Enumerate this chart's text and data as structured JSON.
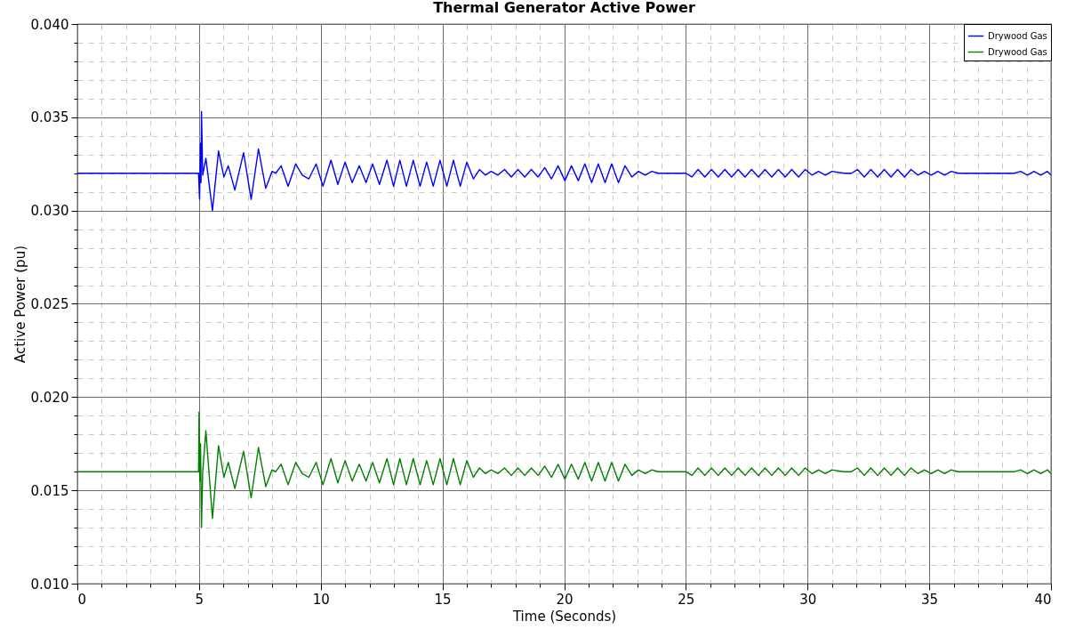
{
  "chart_data": {
    "type": "line",
    "title": "Thermal Generator Active Power",
    "xlabel": "Time (Seconds)",
    "ylabel": "Active Power (pu)",
    "xlim": [
      0,
      40
    ],
    "xticks": [
      0,
      5,
      10,
      15,
      20,
      25,
      30,
      35,
      40
    ],
    "ylim": [
      0.01,
      0.04
    ],
    "yticks": [
      {
        "value": 0.01,
        "label": "0.010"
      },
      {
        "value": 0.015,
        "label": "0.015"
      },
      {
        "value": 0.02,
        "label": "0.020"
      },
      {
        "value": 0.025,
        "label": "0.025"
      },
      {
        "value": 0.03,
        "label": "0.030"
      },
      {
        "value": 0.035,
        "label": "0.035"
      },
      {
        "value": 0.04,
        "label": "0.040"
      }
    ],
    "grid": true,
    "legend": "top right",
    "line_style": "solid",
    "marker": "none",
    "series": [
      {
        "name": "Drywood Gas",
        "color": "#0000ff",
        "x": [
          0,
          4.98,
          5.02,
          5.06,
          5.08,
          5.1,
          5.15,
          5.28,
          5.55,
          5.8,
          6.02,
          6.2,
          6.47,
          6.83,
          7.14,
          7.44,
          7.74,
          8.0,
          8.15,
          8.37,
          8.66,
          8.97,
          9.24,
          9.51,
          9.81,
          10.09,
          10.42,
          10.7,
          11.0,
          11.29,
          11.58,
          11.86,
          12.13,
          12.41,
          12.72,
          12.99,
          13.25,
          13.52,
          13.8,
          14.08,
          14.35,
          14.62,
          14.9,
          15.18,
          15.45,
          15.73,
          16.0,
          16.27,
          16.52,
          16.76,
          17.0,
          17.28,
          17.55,
          17.83,
          18.1,
          18.38,
          18.65,
          18.93,
          19.2,
          19.48,
          19.75,
          20.03,
          20.3,
          20.58,
          20.85,
          21.13,
          21.4,
          21.68,
          21.95,
          22.23,
          22.5,
          22.78,
          23.05,
          23.33,
          23.6,
          23.88,
          24.15,
          24.7,
          25.0,
          25.25,
          25.5,
          25.78,
          26.05,
          26.33,
          26.6,
          26.88,
          27.15,
          27.43,
          27.7,
          27.98,
          28.25,
          28.53,
          28.8,
          29.08,
          29.35,
          29.63,
          29.9,
          30.18,
          30.45,
          30.73,
          31.0,
          31.5,
          31.8,
          32.05,
          32.33,
          32.6,
          32.88,
          33.15,
          33.43,
          33.7,
          33.98,
          34.25,
          34.53,
          34.8,
          35.08,
          35.35,
          35.63,
          35.9,
          36.2,
          37.0,
          37.5,
          38.0,
          38.5,
          38.75,
          39.03,
          39.3,
          39.58,
          39.85,
          40
        ],
        "values": [
          0.032,
          0.032,
          0.0306,
          0.0336,
          0.0315,
          0.0353,
          0.0319,
          0.0328,
          0.03,
          0.0332,
          0.0318,
          0.0324,
          0.0311,
          0.0331,
          0.0306,
          0.0333,
          0.0312,
          0.0321,
          0.032,
          0.0324,
          0.0313,
          0.0325,
          0.0319,
          0.0317,
          0.0325,
          0.0313,
          0.0327,
          0.0314,
          0.0326,
          0.0315,
          0.0324,
          0.0315,
          0.0325,
          0.0314,
          0.0327,
          0.0313,
          0.0327,
          0.0313,
          0.0327,
          0.0313,
          0.0326,
          0.0313,
          0.0327,
          0.0313,
          0.0327,
          0.0313,
          0.0326,
          0.0317,
          0.0322,
          0.0319,
          0.0321,
          0.0319,
          0.0322,
          0.0318,
          0.0322,
          0.0318,
          0.0322,
          0.0318,
          0.0323,
          0.0317,
          0.0324,
          0.0316,
          0.0324,
          0.0316,
          0.0325,
          0.0315,
          0.0325,
          0.0315,
          0.0325,
          0.0315,
          0.0324,
          0.0318,
          0.0321,
          0.0319,
          0.0321,
          0.032,
          0.032,
          0.032,
          0.032,
          0.0318,
          0.0322,
          0.0318,
          0.0322,
          0.0318,
          0.0322,
          0.0318,
          0.0322,
          0.0318,
          0.0322,
          0.0318,
          0.0322,
          0.0318,
          0.0322,
          0.0318,
          0.0322,
          0.0318,
          0.0322,
          0.0319,
          0.0321,
          0.0319,
          0.0321,
          0.032,
          0.032,
          0.0322,
          0.0318,
          0.0322,
          0.0318,
          0.0322,
          0.0318,
          0.0322,
          0.0318,
          0.0322,
          0.0319,
          0.0321,
          0.0319,
          0.0321,
          0.0319,
          0.0321,
          0.032,
          0.032,
          0.032,
          0.032,
          0.032,
          0.0321,
          0.0319,
          0.0321,
          0.0319,
          0.0321,
          0.0319
        ]
      },
      {
        "name": "Drywood Gas",
        "color": "#008000",
        "x": [
          0,
          4.98,
          5.0,
          5.03,
          5.06,
          5.1,
          5.15,
          5.28,
          5.55,
          5.8,
          6.02,
          6.2,
          6.47,
          6.83,
          7.14,
          7.44,
          7.74,
          8.0,
          8.15,
          8.37,
          8.66,
          8.97,
          9.24,
          9.51,
          9.81,
          10.09,
          10.42,
          10.7,
          11.0,
          11.29,
          11.58,
          11.86,
          12.13,
          12.41,
          12.72,
          12.99,
          13.25,
          13.52,
          13.8,
          14.08,
          14.35,
          14.62,
          14.9,
          15.18,
          15.45,
          15.73,
          16.0,
          16.27,
          16.52,
          16.76,
          17.0,
          17.28,
          17.55,
          17.83,
          18.1,
          18.38,
          18.65,
          18.93,
          19.2,
          19.48,
          19.75,
          20.03,
          20.3,
          20.58,
          20.85,
          21.13,
          21.4,
          21.68,
          21.95,
          22.23,
          22.5,
          22.78,
          23.05,
          23.33,
          23.6,
          23.88,
          24.15,
          24.7,
          25.0,
          25.25,
          25.5,
          25.78,
          26.05,
          26.33,
          26.6,
          26.88,
          27.15,
          27.43,
          27.7,
          27.98,
          28.25,
          28.53,
          28.8,
          29.08,
          29.35,
          29.63,
          29.9,
          30.18,
          30.45,
          30.73,
          31.0,
          31.5,
          31.8,
          32.05,
          32.33,
          32.6,
          32.88,
          33.15,
          33.43,
          33.7,
          33.98,
          34.25,
          34.53,
          34.8,
          35.08,
          35.35,
          35.63,
          35.9,
          36.2,
          37.0,
          37.5,
          38.0,
          38.5,
          38.75,
          39.03,
          39.3,
          39.58,
          39.85,
          40
        ],
        "values": [
          0.016,
          0.016,
          0.0192,
          0.0155,
          0.0175,
          0.013,
          0.016,
          0.0182,
          0.0135,
          0.0174,
          0.0157,
          0.0165,
          0.0151,
          0.0171,
          0.0146,
          0.0173,
          0.0152,
          0.0161,
          0.016,
          0.0164,
          0.0153,
          0.0165,
          0.0159,
          0.0157,
          0.0165,
          0.0153,
          0.0167,
          0.0154,
          0.0166,
          0.0155,
          0.0164,
          0.0155,
          0.0165,
          0.0154,
          0.0167,
          0.0153,
          0.0167,
          0.0153,
          0.0167,
          0.0153,
          0.0166,
          0.0153,
          0.0167,
          0.0153,
          0.0167,
          0.0153,
          0.0166,
          0.0157,
          0.0162,
          0.0159,
          0.0161,
          0.0159,
          0.0162,
          0.0158,
          0.0162,
          0.0158,
          0.0162,
          0.0158,
          0.0163,
          0.0157,
          0.0164,
          0.0156,
          0.0164,
          0.0156,
          0.0165,
          0.0155,
          0.0165,
          0.0155,
          0.0165,
          0.0155,
          0.0164,
          0.0158,
          0.0161,
          0.0159,
          0.0161,
          0.016,
          0.016,
          0.016,
          0.016,
          0.0158,
          0.0162,
          0.0158,
          0.0162,
          0.0158,
          0.0162,
          0.0158,
          0.0162,
          0.0158,
          0.0162,
          0.0158,
          0.0162,
          0.0158,
          0.0162,
          0.0158,
          0.0162,
          0.0158,
          0.0162,
          0.0159,
          0.0161,
          0.0159,
          0.0161,
          0.016,
          0.016,
          0.0162,
          0.0158,
          0.0162,
          0.0158,
          0.0162,
          0.0158,
          0.0162,
          0.0158,
          0.0162,
          0.0159,
          0.0161,
          0.0159,
          0.0161,
          0.0159,
          0.0161,
          0.016,
          0.016,
          0.016,
          0.016,
          0.016,
          0.0161,
          0.0159,
          0.0161,
          0.0159,
          0.0161,
          0.0159
        ]
      }
    ]
  }
}
